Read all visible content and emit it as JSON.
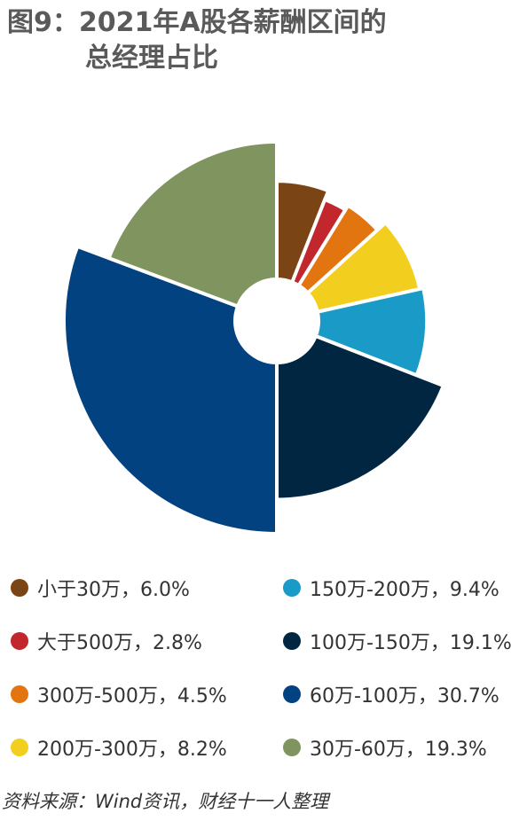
{
  "title_line1": "图9：2021年A股各薪酬区间的",
  "title_line2": "总经理占比",
  "source": "资料来源：Wind资讯，财经十一人整理",
  "chart_data": {
    "type": "pie",
    "variant": "donut-with-variable-radius",
    "title": "图9：2021年A股各薪酬区间的总经理占比",
    "slices": [
      {
        "label": "小于30万",
        "value": 6.0,
        "color": "#7a4414",
        "legend": "小于30万，6.0%"
      },
      {
        "label": "大于500万",
        "value": 2.8,
        "color": "#c1272d",
        "legend": "大于500万，2.8%"
      },
      {
        "label": "300万-500万",
        "value": 4.5,
        "color": "#e2750f",
        "legend": "300万-500万，4.5%"
      },
      {
        "label": "200万-300万",
        "value": 8.2,
        "color": "#f2cf1e",
        "legend": "200万-300万，8.2%"
      },
      {
        "label": "150万-200万",
        "value": 9.4,
        "color": "#1a9bc7",
        "legend": "150万-200万，9.4%"
      },
      {
        "label": "100万-150万",
        "value": 19.1,
        "color": "#012641",
        "legend": "100万-150万，19.1%"
      },
      {
        "label": "60万-100万",
        "value": 30.7,
        "color": "#024280",
        "legend": "60万-100万，30.7%"
      },
      {
        "label": "30万-60万",
        "value": 19.3,
        "color": "#7f945f",
        "legend": "30万-60万，19.3%"
      }
    ],
    "legend_placement": "bottom",
    "legend_order": [
      0,
      4,
      1,
      5,
      2,
      6,
      3,
      7
    ]
  }
}
